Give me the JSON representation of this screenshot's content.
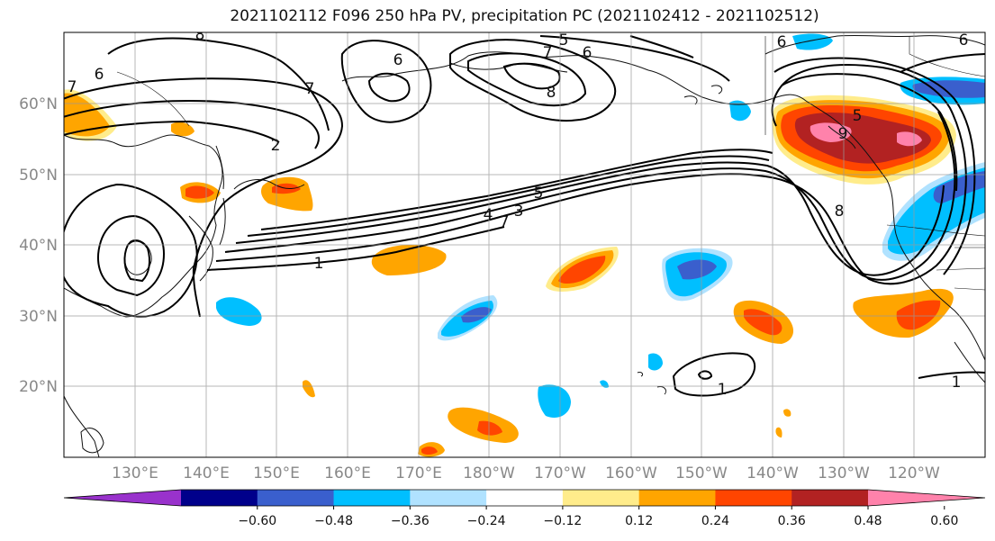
{
  "title": "2021102112 F096 250 hPa PV, precipitation PC (2021102412 - 2021102512)",
  "lat_labels": [
    "60°N",
    "50°N",
    "40°N",
    "30°N",
    "20°N"
  ],
  "lon_labels": [
    "130°E",
    "140°E",
    "150°E",
    "160°E",
    "170°E",
    "180°W",
    "170°W",
    "160°W",
    "150°W",
    "140°W",
    "130°W",
    "120°W"
  ],
  "colorbar": {
    "colors": [
      "#9932cc",
      "#00008b",
      "#3a5fcd",
      "#00bfff",
      "#b0e2ff",
      "#ffffff",
      "#ffec8b",
      "#ffa500",
      "#ff4500",
      "#b22222",
      "#ff82ab"
    ],
    "tick_labels": [
      "−0.60",
      "−0.48",
      "−0.36",
      "−0.24",
      "−0.12",
      "0.12",
      "0.24",
      "0.36",
      "0.48",
      "0.60"
    ]
  },
  "contour_labels": [
    "8",
    "6",
    "7",
    "2",
    "6",
    "7",
    "8",
    "5",
    "6",
    "7",
    "6",
    "4",
    "3",
    "5",
    "7",
    "1",
    "8",
    "5",
    "9",
    "1",
    "1",
    "6"
  ]
}
